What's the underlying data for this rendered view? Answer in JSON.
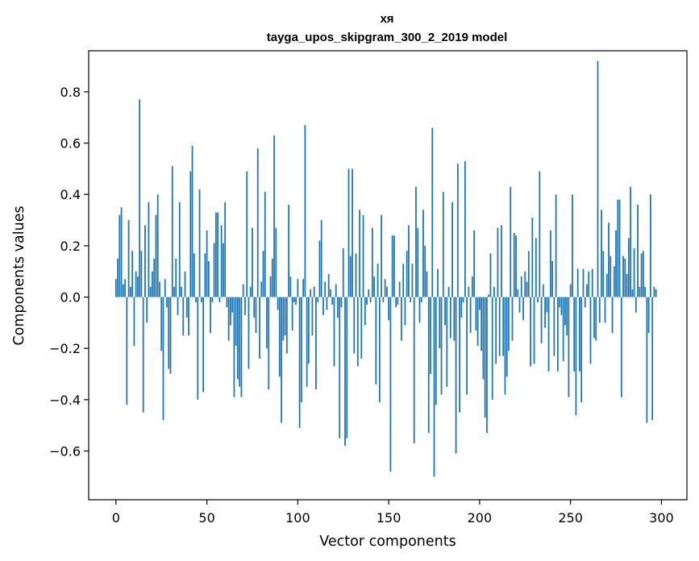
{
  "chart_data": {
    "type": "bar",
    "title": "хя",
    "subtitle": "tayga_upos_skipgram_300_2_2019 model",
    "xlabel": "Vector components",
    "ylabel": "Components values",
    "xlim": [
      -15,
      314
    ],
    "ylim": [
      -0.79,
      0.96
    ],
    "xticks": [
      0,
      50,
      100,
      150,
      200,
      250,
      300
    ],
    "yticks": [
      -0.6,
      -0.4,
      -0.2,
      0.0,
      0.2,
      0.4,
      0.6,
      0.8
    ],
    "ytick_labels": [
      "−0.6",
      "−0.4",
      "−0.2",
      "0.0",
      "0.2",
      "0.4",
      "0.6",
      "0.8"
    ],
    "bar_color": "#1f77b4",
    "grid": false,
    "legend": "none",
    "x": "0..299 (integer component index)",
    "values": [
      0.07,
      0.15,
      0.32,
      0.35,
      0.05,
      0.07,
      -0.42,
      0.3,
      0.04,
      0.18,
      -0.19,
      0.1,
      0.08,
      0.77,
      0.18,
      -0.45,
      0.28,
      -0.1,
      0.37,
      0.04,
      0.1,
      0.15,
      0.32,
      0.4,
      0.06,
      -0.21,
      -0.48,
      0.07,
      -0.04,
      -0.28,
      -0.3,
      0.51,
      0.04,
      0.15,
      -0.07,
      0.37,
      0.04,
      -0.15,
      0.1,
      -0.08,
      -0.15,
      0.49,
      0.59,
      0.17,
      -0.02,
      -0.4,
      0.42,
      -0.02,
      -0.37,
      0.17,
      0.26,
      0.14,
      -0.14,
      -0.02,
      0.21,
      0.33,
      0.33,
      -0.02,
      0.28,
      0.21,
      0.37,
      -0.04,
      -0.17,
      -0.11,
      -0.06,
      -0.39,
      -0.19,
      -0.32,
      -0.35,
      -0.39,
      0.05,
      -0.07,
      0.49,
      -0.28,
      0.04,
      0.27,
      -0.08,
      -0.14,
      0.58,
      -0.24,
      0.06,
      0.18,
      0.41,
      -0.2,
      -0.36,
      0.08,
      0.15,
      0.63,
      0.27,
      -0.05,
      -0.31,
      -0.49,
      -0.17,
      -0.15,
      -0.22,
      0.36,
      0.08,
      -0.13,
      -0.02,
      -0.03,
      0.07,
      -0.51,
      -0.41,
      0.07,
      0.67,
      -0.35,
      -0.26,
      0.03,
      -0.15,
      0.04,
      -0.36,
      -0.02,
      0.22,
      0.3,
      -0.07,
      0.06,
      -0.05,
      0.09,
      0.03,
      -0.03,
      -0.27,
      0.05,
      -0.08,
      -0.55,
      -0.04,
      0.19,
      -0.58,
      -0.55,
      0.5,
      0.16,
      0.5,
      -0.22,
      0.17,
      -0.27,
      0.34,
      -0.24,
      0.32,
      -0.11,
      -0.03,
      0.03,
      -0.02,
      0.27,
      0.08,
      -0.34,
      0.13,
      -0.41,
      0.32,
      -0.02,
      0.07,
      0.04,
      -0.09,
      -0.68,
      0.24,
      0.24,
      -0.04,
      -0.03,
      0.06,
      -0.17,
      0.13,
      -0.11,
      0.18,
      0.28,
      -0.02,
      0.13,
      -0.57,
      0.43,
      0.27,
      -0.1,
      -0.02,
      0.34,
      0.2,
      0.1,
      -0.53,
      -0.3,
      0.66,
      -0.7,
      -0.42,
      0.11,
      -0.2,
      -0.38,
      0.41,
      -0.11,
      -0.35,
      0.04,
      -0.16,
      0.37,
      -0.17,
      -0.61,
      0.52,
      -0.45,
      -0.08,
      -0.02,
      0.53,
      -0.38,
      0.04,
      -0.14,
      0.08,
      0.26,
      -0.13,
      -0.19,
      -0.05,
      -0.21,
      -0.32,
      -0.47,
      -0.53,
      0.01,
      0.17,
      -0.4,
      0.04,
      -0.26,
      0.27,
      -0.23,
      0.28,
      -0.23,
      -0.38,
      -0.31,
      -0.21,
      0.43,
      -0.17,
      0.25,
      0.24,
      0.03,
      -0.06,
      0.08,
      -0.09,
      0.1,
      0.06,
      0.18,
      -0.27,
      0.31,
      -0.26,
      0.23,
      -0.02,
      0.49,
      -0.18,
      0.05,
      -0.12,
      -0.06,
      -0.29,
      0.26,
      0.14,
      -0.23,
      0.4,
      -0.29,
      -0.04,
      -0.07,
      -0.25,
      -0.11,
      -0.15,
      -0.39,
      0.05,
      0.4,
      -0.29,
      -0.46,
      0.11,
      -0.29,
      -0.41,
      0.11,
      -0.04,
      0.05,
      0.1,
      -0.26,
      0.11,
      -0.16,
      -0.17,
      0.92,
      -0.1,
      0.34,
      0.18,
      -0.1,
      0.09,
      0.29,
      0.16,
      -0.14,
      0.12,
      0.26,
      0.38,
      0.38,
      -0.39,
      0.16,
      0.15,
      0.09,
      0.23,
      0.43,
      0.03,
      0.19,
      -0.06,
      0.36,
      0.04,
      0.17,
      0.18,
      0.04,
      -0.49,
      -0.14,
      0.4,
      -0.48,
      0.04,
      0.03
    ]
  }
}
